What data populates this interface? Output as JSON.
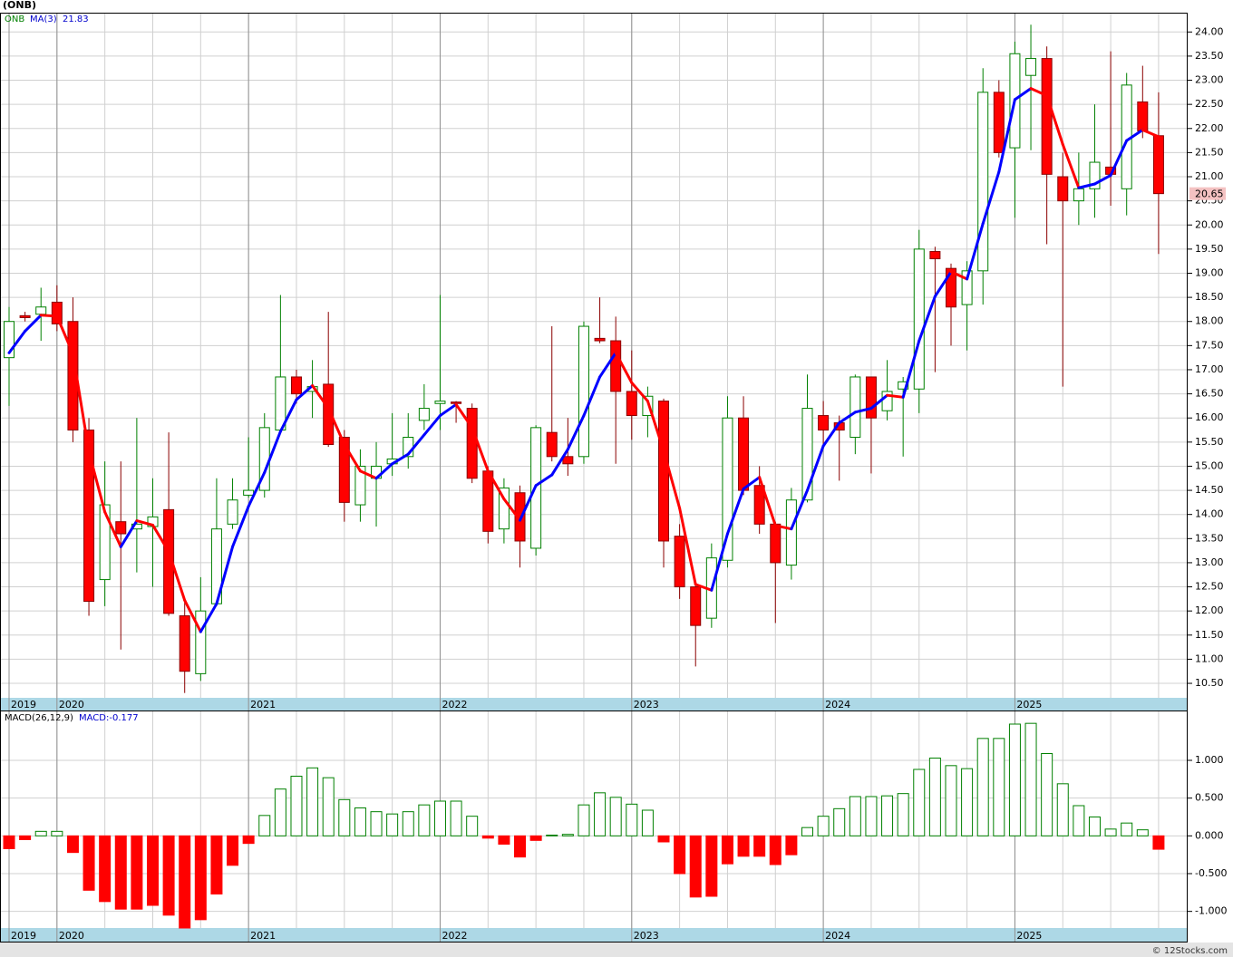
{
  "chart_data": [
    {
      "type": "candlestick",
      "title": "(ONB)",
      "name": "ONB",
      "categories": [
        "2019",
        null,
        null,
        "2020",
        null,
        null,
        null,
        null,
        null,
        null,
        null,
        null,
        null,
        null,
        null,
        "2021",
        null,
        null,
        null,
        null,
        null,
        null,
        null,
        null,
        null,
        null,
        null,
        "2022",
        null,
        null,
        null,
        null,
        null,
        null,
        null,
        null,
        null,
        null,
        null,
        "2023",
        null,
        null,
        null,
        null,
        null,
        null,
        null,
        null,
        null,
        null,
        null,
        "2024",
        null,
        null,
        null,
        null,
        null,
        null,
        null,
        null,
        null,
        null,
        null,
        "2025",
        null,
        null,
        null,
        null,
        null,
        null,
        null,
        null,
        null
      ],
      "open": [
        17.25,
        18.12,
        18.15,
        18.4,
        18.0,
        15.75,
        12.65,
        13.85,
        13.7,
        13.75,
        14.1,
        11.9,
        10.7,
        12.15,
        13.8,
        14.4,
        14.5,
        15.75,
        16.85,
        16.55,
        16.7,
        15.6,
        14.2,
        14.75,
        15.05,
        15.2,
        15.95,
        16.3,
        16.33,
        16.2,
        14.9,
        13.7,
        14.45,
        13.3,
        15.7,
        15.2,
        15.2,
        17.65,
        17.6,
        16.55,
        16.05,
        16.35,
        13.55,
        12.5,
        11.85,
        13.05,
        16.0,
        14.6,
        13.8,
        12.95,
        14.3,
        16.05,
        15.9,
        15.6,
        16.85,
        16.15,
        16.6,
        16.6,
        19.45,
        19.1,
        18.35,
        19.05,
        22.75,
        21.6,
        23.1,
        23.45,
        21.0,
        20.5,
        20.75,
        21.2,
        20.75,
        22.55,
        21.85
      ],
      "high": [
        18.3,
        18.2,
        18.7,
        18.75,
        18.5,
        16.0,
        15.1,
        15.1,
        16.0,
        14.75,
        15.7,
        12.25,
        12.7,
        14.75,
        14.75,
        15.6,
        16.1,
        18.55,
        17.0,
        17.2,
        18.2,
        15.75,
        15.35,
        15.5,
        16.1,
        16.1,
        16.7,
        18.55,
        16.35,
        16.3,
        15.0,
        14.75,
        14.6,
        15.85,
        17.9,
        16.0,
        18.0,
        18.5,
        18.1,
        17.4,
        16.65,
        16.4,
        13.8,
        12.55,
        13.4,
        16.45,
        16.45,
        15.0,
        13.85,
        14.55,
        16.9,
        16.35,
        16.05,
        16.9,
        16.85,
        17.2,
        16.85,
        19.9,
        19.55,
        19.2,
        19.25,
        23.25,
        23.0,
        23.8,
        24.15,
        23.7,
        21.5,
        21.5,
        22.5,
        23.6,
        23.15,
        23.3,
        22.75
      ],
      "low": [
        16.25,
        18.0,
        17.6,
        17.8,
        15.5,
        11.9,
        12.1,
        11.2,
        12.8,
        12.5,
        11.9,
        10.3,
        10.55,
        12.1,
        13.7,
        14.35,
        14.35,
        15.7,
        16.3,
        16.0,
        15.4,
        13.85,
        13.85,
        13.75,
        14.8,
        14.95,
        15.75,
        15.75,
        15.9,
        14.65,
        13.4,
        13.4,
        12.9,
        13.15,
        15.1,
        14.8,
        15.05,
        17.55,
        15.05,
        15.55,
        15.6,
        12.9,
        12.25,
        10.85,
        11.65,
        12.9,
        14.4,
        13.6,
        11.75,
        12.65,
        14.25,
        15.45,
        14.7,
        15.25,
        14.85,
        15.95,
        15.2,
        16.1,
        16.95,
        17.5,
        17.4,
        18.35,
        21.4,
        20.15,
        21.55,
        19.6,
        16.65,
        20.0,
        20.15,
        20.4,
        20.2,
        21.8,
        19.4
      ],
      "close": [
        18.0,
        18.08,
        18.3,
        17.95,
        15.75,
        12.2,
        14.2,
        13.6,
        13.8,
        13.95,
        11.95,
        10.75,
        12.0,
        13.7,
        14.3,
        14.5,
        15.8,
        16.85,
        16.5,
        16.65,
        15.45,
        14.25,
        15.0,
        15.0,
        15.15,
        15.6,
        16.2,
        16.35,
        16.3,
        14.75,
        13.65,
        14.55,
        13.45,
        15.8,
        15.2,
        15.05,
        17.9,
        17.6,
        16.55,
        16.05,
        16.45,
        13.45,
        12.5,
        11.7,
        13.1,
        16.0,
        14.5,
        13.8,
        13.0,
        14.3,
        16.2,
        15.75,
        15.75,
        16.85,
        16.0,
        16.55,
        16.75,
        19.5,
        19.3,
        18.3,
        19.05,
        22.75,
        21.5,
        23.55,
        23.45,
        21.05,
        20.5,
        20.75,
        21.3,
        21.05,
        22.9,
        21.95,
        20.65
      ],
      "up_color": "#008000",
      "down_color": "#ff0000",
      "overlay": {
        "name": "MA(3)",
        "up_color": "#0000ff",
        "down_color": "#ff0000",
        "values": [
          17.35,
          17.8,
          18.13,
          18.11,
          17.33,
          15.3,
          14.05,
          13.33,
          13.87,
          13.78,
          13.23,
          12.22,
          11.57,
          12.15,
          13.33,
          14.17,
          14.87,
          15.72,
          16.38,
          16.67,
          16.2,
          15.45,
          14.9,
          14.75,
          15.05,
          15.25,
          15.65,
          16.05,
          16.28,
          15.8,
          14.9,
          14.32,
          13.88,
          14.6,
          14.82,
          15.35,
          16.05,
          16.85,
          17.35,
          16.73,
          16.35,
          15.32,
          14.13,
          12.55,
          12.43,
          13.6,
          14.53,
          14.77,
          13.77,
          13.7,
          14.5,
          15.42,
          15.9,
          16.12,
          16.2,
          16.47,
          16.43,
          17.6,
          18.52,
          19.03,
          18.88,
          20.03,
          21.1,
          22.6,
          22.83,
          22.68,
          21.67,
          20.77,
          20.85,
          21.03,
          21.75,
          21.97,
          21.83
        ]
      },
      "ylim": [
        10.2,
        24.4
      ],
      "yticks": [
        {
          "value": 10.5,
          "label": "10.50"
        },
        {
          "value": 11,
          "label": "11.00"
        },
        {
          "value": 11.5,
          "label": "11.50"
        },
        {
          "value": 12,
          "label": "12.00"
        },
        {
          "value": 12.5,
          "label": "12.50"
        },
        {
          "value": 13,
          "label": "13.00"
        },
        {
          "value": 13.5,
          "label": "13.50"
        },
        {
          "value": 14,
          "label": "14.00"
        },
        {
          "value": 14.5,
          "label": "14.50"
        },
        {
          "value": 15,
          "label": "15.00"
        },
        {
          "value": 15.5,
          "label": "15.50"
        },
        {
          "value": 16,
          "label": "16.00"
        },
        {
          "value": 16.5,
          "label": "16.50"
        },
        {
          "value": 17,
          "label": "17.00"
        },
        {
          "value": 17.5,
          "label": "17.50"
        },
        {
          "value": 18,
          "label": "18.00"
        },
        {
          "value": 18.5,
          "label": "18.50"
        },
        {
          "value": 19,
          "label": "19.00"
        },
        {
          "value": 19.5,
          "label": "19.50"
        },
        {
          "value": 20,
          "label": "20.00"
        },
        {
          "value": 20.5,
          "label": "20.50"
        },
        {
          "value": 21,
          "label": "21.00"
        },
        {
          "value": 21.5,
          "label": "21.50"
        },
        {
          "value": 22,
          "label": "22.00"
        },
        {
          "value": 22.5,
          "label": "22.50"
        },
        {
          "value": 23,
          "label": "23.00"
        },
        {
          "value": 23.5,
          "label": "23.50"
        },
        {
          "value": 24,
          "label": "24.00"
        }
      ],
      "grid": true
    },
    {
      "type": "bar",
      "title": "MACD(26,12,9)",
      "name": "MACD:",
      "categories": [
        "2019",
        null,
        null,
        "2020",
        null,
        null,
        null,
        null,
        null,
        null,
        null,
        null,
        null,
        null,
        null,
        "2021",
        null,
        null,
        null,
        null,
        null,
        null,
        null,
        null,
        null,
        null,
        null,
        "2022",
        null,
        null,
        null,
        null,
        null,
        null,
        null,
        null,
        null,
        null,
        null,
        "2023",
        null,
        null,
        null,
        null,
        null,
        null,
        null,
        null,
        null,
        null,
        null,
        "2024",
        null,
        null,
        null,
        null,
        null,
        null,
        null,
        null,
        null,
        null,
        null,
        "2025",
        null,
        null,
        null,
        null,
        null,
        null,
        null,
        null,
        null
      ],
      "values": [
        -0.17,
        -0.05,
        0.06,
        0.06,
        -0.22,
        -0.72,
        -0.87,
        -0.97,
        -0.97,
        -0.92,
        -1.05,
        -1.22,
        -1.11,
        -0.77,
        -0.39,
        -0.1,
        0.27,
        0.62,
        0.79,
        0.9,
        0.77,
        0.48,
        0.37,
        0.32,
        0.29,
        0.32,
        0.41,
        0.46,
        0.46,
        0.26,
        -0.03,
        -0.11,
        -0.28,
        -0.06,
        0.01,
        0.02,
        0.41,
        0.57,
        0.51,
        0.42,
        0.34,
        -0.08,
        -0.5,
        -0.81,
        -0.8,
        -0.37,
        -0.27,
        -0.27,
        -0.38,
        -0.25,
        0.11,
        0.26,
        0.36,
        0.52,
        0.52,
        0.53,
        0.56,
        0.88,
        1.03,
        0.93,
        0.89,
        1.29,
        1.29,
        1.48,
        1.49,
        1.09,
        0.69,
        0.4,
        0.25,
        0.09,
        0.17,
        0.08,
        -0.177
      ],
      "up_color": "#008000",
      "down_color": "#ff0000",
      "ylim": [
        -1.22,
        1.66
      ],
      "yticks": [
        {
          "value": -1,
          "label": "-1.000"
        },
        {
          "value": -0.5,
          "label": "-0.500"
        },
        {
          "value": 0,
          "label": "0.000"
        },
        {
          "value": 0.5,
          "label": "0.500"
        },
        {
          "value": 1,
          "label": "1.000"
        }
      ],
      "grid": true
    }
  ],
  "footer": "© 12Stocks.com"
}
